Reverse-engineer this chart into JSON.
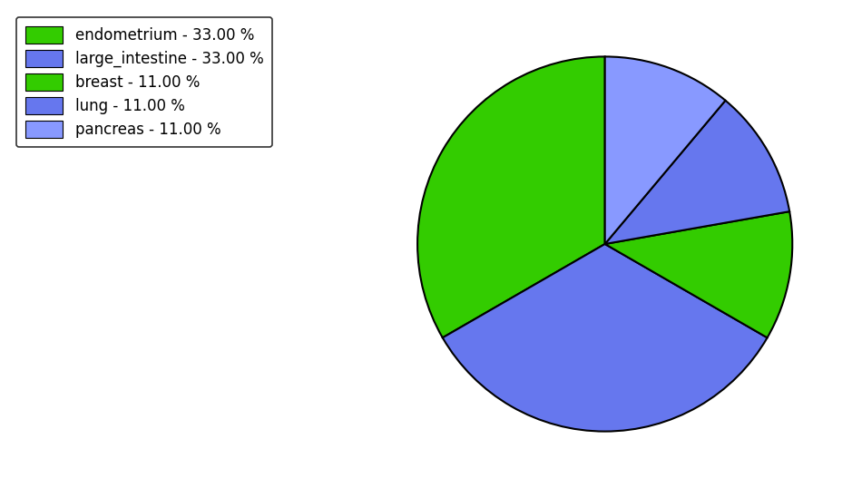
{
  "labels": [
    "endometrium",
    "large_intestine",
    "breast",
    "lung",
    "pancreas"
  ],
  "values": [
    33.0,
    33.0,
    11.0,
    11.0,
    11.0
  ],
  "colors": [
    "#33cc00",
    "#6677ee",
    "#33cc00",
    "#6677ee",
    "#8899ff"
  ],
  "legend_labels": [
    "endometrium - 33.00 %",
    "large_intestine - 33.00 %",
    "breast - 11.00 %",
    "lung - 11.00 %",
    "pancreas - 11.00 %"
  ],
  "legend_colors": [
    "#33cc00",
    "#6677ee",
    "#33cc00",
    "#6677ee",
    "#8899ff"
  ],
  "startangle": 90,
  "background_color": "#ffffff",
  "figsize": [
    9.39,
    5.38
  ],
  "dpi": 100
}
